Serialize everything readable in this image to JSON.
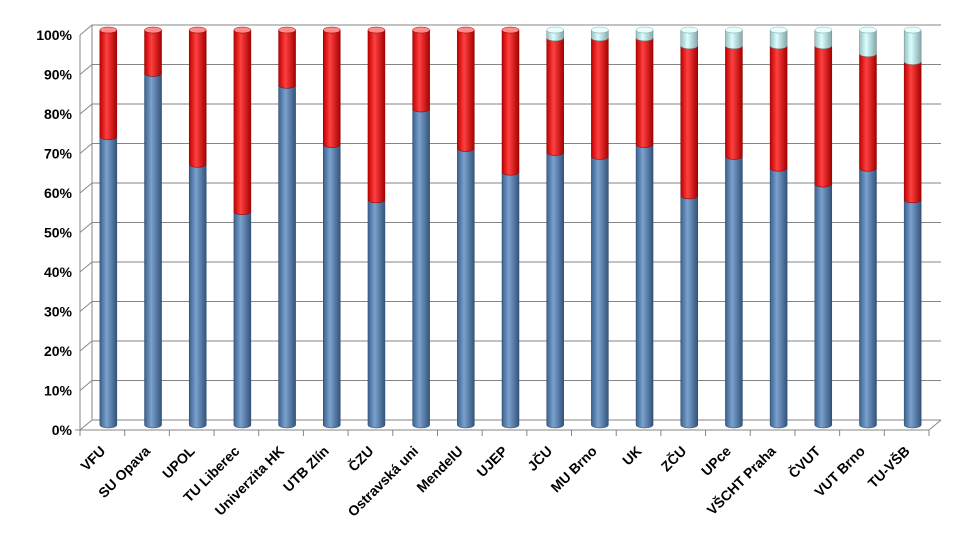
{
  "chart_data": {
    "type": "bar",
    "stacked": "percent",
    "title": "",
    "xlabel": "",
    "ylabel": "",
    "ylim": [
      0,
      100
    ],
    "y_ticks": [
      "0%",
      "10%",
      "20%",
      "30%",
      "40%",
      "50%",
      "60%",
      "70%",
      "80%",
      "90%",
      "100%"
    ],
    "grid": "horizontal",
    "legend": "none",
    "categories": [
      "VFU",
      "SU Opava",
      "UPOL",
      "TU Liberec",
      "Univerzita HK",
      "UTB Zlín",
      "ČZU",
      "Ostravská uni",
      "MendelU",
      "UJEP",
      "JČU",
      "MU Brno",
      "UK",
      "ZČU",
      "UPce",
      "VŠCHT Praha",
      "ČVUT",
      "VUT Brno",
      "TU-VŠB"
    ],
    "series": [
      {
        "color": "#4f81bd",
        "values": [
          73,
          89,
          66,
          54,
          86,
          71,
          57,
          80,
          70,
          64,
          69,
          68,
          71,
          58,
          68,
          65,
          61,
          65,
          57
        ]
      },
      {
        "color": "#ff0000",
        "values": [
          27,
          11,
          34,
          46,
          14,
          29,
          43,
          20,
          30,
          36,
          29,
          30,
          27,
          38,
          28,
          31,
          35,
          29,
          35
        ]
      },
      {
        "color": "#ccffff",
        "values": [
          0,
          0,
          0,
          0,
          0,
          0,
          0,
          0,
          0,
          0,
          2,
          2,
          2,
          4,
          4,
          4,
          4,
          6,
          8
        ]
      }
    ]
  }
}
